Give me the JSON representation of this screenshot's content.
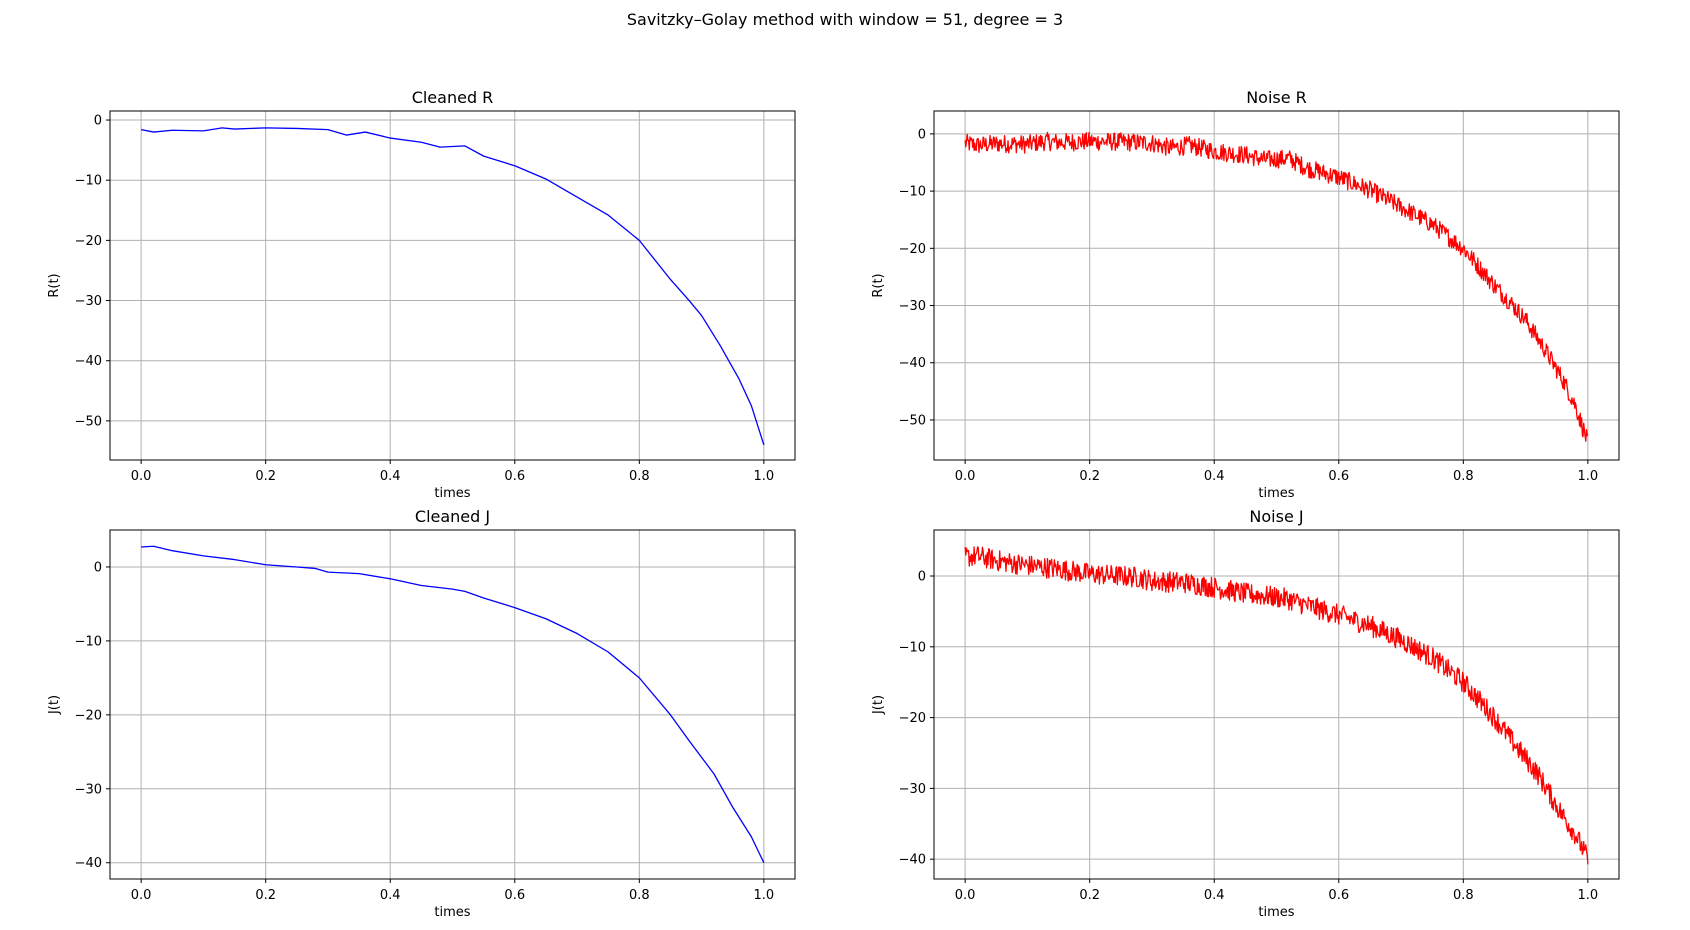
{
  "figure": {
    "suptitle": "Savitzky–Golay method with window = 51, degree = 3"
  },
  "chart_data": [
    {
      "type": "line",
      "title": "Cleaned R",
      "xlabel": "times",
      "ylabel": "R(t)",
      "xlim": [
        -0.05,
        1.05
      ],
      "ylim": [
        -56.5,
        1.5
      ],
      "xticks": [
        0.0,
        0.2,
        0.4,
        0.6,
        0.8,
        1.0
      ],
      "xtick_labels": [
        "0.0",
        "0.2",
        "0.4",
        "0.6",
        "0.8",
        "1.0"
      ],
      "yticks": [
        0,
        -10,
        -20,
        -30,
        -40,
        -50
      ],
      "ytick_labels": [
        "0",
        "−10",
        "−20",
        "−30",
        "−40",
        "−50"
      ],
      "grid": true,
      "series": [
        {
          "color": "#0000ff",
          "noisy": false,
          "x": [
            0.0,
            0.02,
            0.05,
            0.1,
            0.13,
            0.15,
            0.2,
            0.25,
            0.3,
            0.33,
            0.36,
            0.4,
            0.45,
            0.48,
            0.52,
            0.55,
            0.6,
            0.65,
            0.7,
            0.75,
            0.8,
            0.85,
            0.88,
            0.9,
            0.93,
            0.96,
            0.98,
            1.0
          ],
          "y": [
            -1.6,
            -2.0,
            -1.7,
            -1.8,
            -1.3,
            -1.5,
            -1.3,
            -1.4,
            -1.6,
            -2.5,
            -2.0,
            -3.0,
            -3.7,
            -4.5,
            -4.3,
            -6.0,
            -7.6,
            -9.8,
            -12.8,
            -15.8,
            -20.0,
            -26.5,
            -30.0,
            -32.5,
            -37.5,
            -43.0,
            -47.5,
            -54.0
          ]
        }
      ]
    },
    {
      "type": "line",
      "title": "Noise R",
      "xlabel": "times",
      "ylabel": "R(t)",
      "xlim": [
        -0.05,
        1.05
      ],
      "ylim": [
        -57.0,
        4.0
      ],
      "xticks": [
        0.0,
        0.2,
        0.4,
        0.6,
        0.8,
        1.0
      ],
      "xtick_labels": [
        "0.0",
        "0.2",
        "0.4",
        "0.6",
        "0.8",
        "1.0"
      ],
      "yticks": [
        0,
        -10,
        -20,
        -30,
        -40,
        -50
      ],
      "ytick_labels": [
        "0",
        "−10",
        "−20",
        "−30",
        "−40",
        "−50"
      ],
      "grid": true,
      "series": [
        {
          "color": "#ff0000",
          "noisy": true,
          "noise_amplitude": 1.6,
          "x": [
            0.0,
            0.02,
            0.05,
            0.1,
            0.13,
            0.15,
            0.2,
            0.25,
            0.3,
            0.33,
            0.36,
            0.4,
            0.45,
            0.48,
            0.52,
            0.55,
            0.6,
            0.65,
            0.7,
            0.75,
            0.8,
            0.85,
            0.88,
            0.9,
            0.93,
            0.96,
            0.98,
            1.0
          ],
          "y": [
            -1.6,
            -2.0,
            -1.7,
            -1.8,
            -1.3,
            -1.5,
            -1.3,
            -1.4,
            -1.6,
            -2.5,
            -2.0,
            -3.0,
            -3.7,
            -4.5,
            -4.3,
            -6.0,
            -7.6,
            -9.8,
            -12.8,
            -15.8,
            -20.0,
            -26.5,
            -30.0,
            -32.5,
            -37.5,
            -43.0,
            -47.5,
            -54.0
          ]
        }
      ]
    },
    {
      "type": "line",
      "title": "Cleaned J",
      "xlabel": "times",
      "ylabel": "J(t)",
      "xlim": [
        -0.05,
        1.05
      ],
      "ylim": [
        -42.2,
        5.0
      ],
      "xticks": [
        0.0,
        0.2,
        0.4,
        0.6,
        0.8,
        1.0
      ],
      "xtick_labels": [
        "0.0",
        "0.2",
        "0.4",
        "0.6",
        "0.8",
        "1.0"
      ],
      "yticks": [
        0,
        -10,
        -20,
        -30,
        -40
      ],
      "ytick_labels": [
        "0",
        "−10",
        "−20",
        "−30",
        "−40"
      ],
      "grid": true,
      "series": [
        {
          "color": "#0000ff",
          "noisy": false,
          "x": [
            0.0,
            0.02,
            0.05,
            0.1,
            0.15,
            0.2,
            0.25,
            0.28,
            0.3,
            0.35,
            0.4,
            0.45,
            0.5,
            0.52,
            0.55,
            0.6,
            0.65,
            0.7,
            0.75,
            0.8,
            0.85,
            0.88,
            0.92,
            0.95,
            0.98,
            1.0
          ],
          "y": [
            2.7,
            2.8,
            2.2,
            1.5,
            1.0,
            0.3,
            0.0,
            -0.2,
            -0.7,
            -0.9,
            -1.6,
            -2.5,
            -3.0,
            -3.3,
            -4.2,
            -5.5,
            -7.0,
            -9.0,
            -11.5,
            -15.0,
            -20.0,
            -23.5,
            -28.0,
            -32.5,
            -36.5,
            -40.0
          ]
        }
      ]
    },
    {
      "type": "line",
      "title": "Noise J",
      "xlabel": "times",
      "ylabel": "J(t)",
      "xlim": [
        -0.05,
        1.05
      ],
      "ylim": [
        -42.8,
        6.5
      ],
      "xticks": [
        0.0,
        0.2,
        0.4,
        0.6,
        0.8,
        1.0
      ],
      "xtick_labels": [
        "0.0",
        "0.2",
        "0.4",
        "0.6",
        "0.8",
        "1.0"
      ],
      "yticks": [
        0,
        -10,
        -20,
        -30,
        -40
      ],
      "ytick_labels": [
        "0",
        "−10",
        "−20",
        "−30",
        "−40"
      ],
      "grid": true,
      "series": [
        {
          "color": "#ff0000",
          "noisy": true,
          "noise_amplitude": 1.5,
          "x": [
            0.0,
            0.02,
            0.05,
            0.1,
            0.15,
            0.2,
            0.25,
            0.28,
            0.3,
            0.35,
            0.4,
            0.45,
            0.5,
            0.52,
            0.55,
            0.6,
            0.65,
            0.7,
            0.75,
            0.8,
            0.85,
            0.88,
            0.92,
            0.95,
            0.98,
            1.0
          ],
          "y": [
            2.7,
            2.8,
            2.2,
            1.5,
            1.0,
            0.3,
            0.0,
            -0.2,
            -0.7,
            -0.9,
            -1.6,
            -2.5,
            -3.0,
            -3.3,
            -4.2,
            -5.5,
            -7.0,
            -9.0,
            -11.5,
            -15.0,
            -20.0,
            -23.5,
            -28.0,
            -32.5,
            -36.5,
            -40.0
          ]
        }
      ]
    }
  ]
}
